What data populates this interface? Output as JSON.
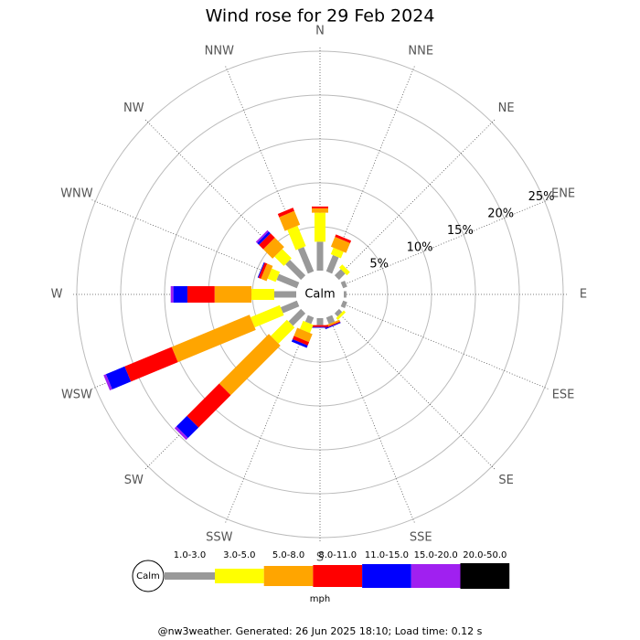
{
  "chart_data": {
    "type": "windrose",
    "title": "Wind rose for 29 Feb 2024",
    "directions": [
      "N",
      "NNE",
      "NE",
      "ENE",
      "E",
      "ESE",
      "SE",
      "SSE",
      "S",
      "SSW",
      "SW",
      "WSW",
      "W",
      "WNW",
      "NW",
      "NNW"
    ],
    "calm_label": "Calm",
    "unit": "mph",
    "rlim": [
      0,
      25
    ],
    "rticks": [
      {
        "value": 5,
        "label": "5%"
      },
      {
        "value": 10,
        "label": "10%"
      },
      {
        "value": 15,
        "label": "15%"
      },
      {
        "value": 20,
        "label": "20%"
      },
      {
        "value": 25,
        "label": "25%"
      }
    ],
    "series": [
      {
        "name": "1.0-3.0",
        "color": "#999999",
        "values": [
          3.3,
          2,
          1,
          0.5,
          0.3,
          0.5,
          0.5,
          0.8,
          0.8,
          0.8,
          2,
          2,
          2.5,
          2.5,
          2.5,
          3
        ]
      },
      {
        "name": "3.0-5.0",
        "color": "#ffff00",
        "values": [
          3.3,
          0.8,
          0.5,
          0,
          0,
          0,
          0.3,
          0,
          0,
          1,
          2.6,
          3.6,
          2.6,
          1,
          1.5,
          2.5
        ]
      },
      {
        "name": "5.0-8.0",
        "color": "#ffa500",
        "values": [
          0.5,
          1.2,
          0,
          0,
          0,
          0,
          0,
          0.2,
          0,
          1,
          8,
          9.6,
          4.2,
          0.7,
          1.5,
          1.7
        ]
      },
      {
        "name": "8.0-11.0",
        "color": "#ff0000",
        "values": [
          0.2,
          0.3,
          0,
          0,
          0,
          0,
          0,
          0.1,
          0.2,
          0.4,
          5.2,
          5.8,
          3.1,
          0.3,
          0.7,
          0.4
        ]
      },
      {
        "name": "11.0-15.0",
        "color": "#0000ff",
        "values": [
          0,
          0,
          0,
          0,
          0,
          0,
          0,
          0.1,
          0.1,
          0.3,
          1.7,
          2.3,
          1.6,
          0.1,
          0.3,
          0
        ]
      },
      {
        "name": "15.0-20.0",
        "color": "#a020f0",
        "values": [
          0,
          0,
          0,
          0,
          0,
          0,
          0,
          0,
          0,
          0,
          0.3,
          0.3,
          0.3,
          0,
          0.2,
          0
        ]
      },
      {
        "name": "20.0-50.0",
        "color": "#000000",
        "values": [
          0,
          0,
          0,
          0,
          0,
          0,
          0,
          0,
          0,
          0,
          0,
          0,
          0,
          0,
          0,
          0
        ]
      }
    ],
    "footer": "@nw3weather. Generated: 26 Jun 2025 18:10; Load time: 0.12 s"
  }
}
